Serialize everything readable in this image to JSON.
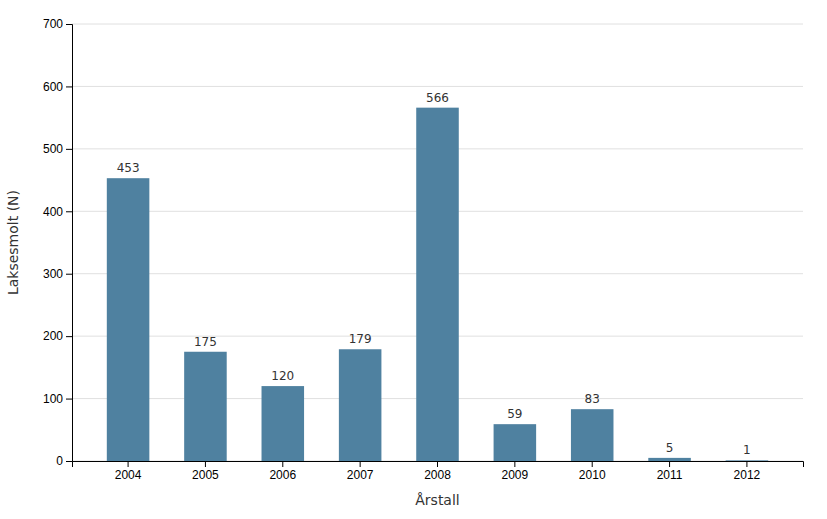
{
  "chart_data": {
    "type": "bar",
    "categories": [
      "2004",
      "2005",
      "2006",
      "2007",
      "2008",
      "2009",
      "2010",
      "2011",
      "2012"
    ],
    "values": [
      453,
      175,
      120,
      179,
      566,
      59,
      83,
      5,
      1
    ],
    "color": "#4f81a0",
    "xlabel": "Årstall",
    "ylabel": "Laksesmolt (N)",
    "ylim": [
      0,
      700
    ],
    "yticks": [
      0,
      100,
      200,
      300,
      400,
      500,
      600,
      700
    ],
    "grid": true,
    "data_labels": true
  }
}
